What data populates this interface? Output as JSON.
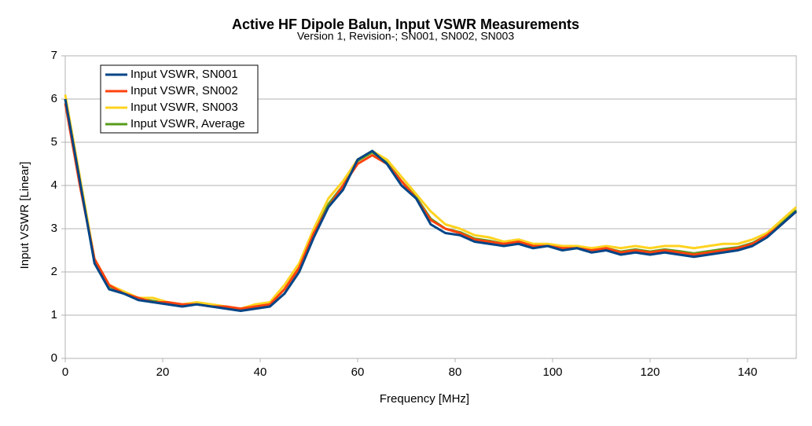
{
  "chart_data": {
    "type": "line",
    "title": "Active HF Dipole Balun, Input VSWR Measurements",
    "subtitle": "Version 1, Revision-; SN001, SN002, SN003",
    "x_label": "Frequency [MHz]",
    "y_label": "Input VSWR [Linear]",
    "x": [
      0,
      3,
      6,
      9,
      12,
      15,
      18,
      21,
      24,
      27,
      30,
      33,
      36,
      39,
      42,
      45,
      48,
      51,
      54,
      57,
      60,
      63,
      66,
      69,
      72,
      75,
      78,
      81,
      84,
      87,
      90,
      93,
      96,
      99,
      102,
      105,
      108,
      111,
      114,
      117,
      120,
      123,
      126,
      129,
      132,
      135,
      138,
      141,
      144,
      147,
      150
    ],
    "series": [
      {
        "name": "Input VSWR, SN001",
        "color": "#004586",
        "values": [
          6.0,
          4.1,
          2.2,
          1.6,
          1.5,
          1.35,
          1.3,
          1.25,
          1.2,
          1.25,
          1.2,
          1.15,
          1.1,
          1.15,
          1.2,
          1.5,
          2.0,
          2.8,
          3.5,
          3.9,
          4.6,
          4.8,
          4.5,
          4.0,
          3.7,
          3.1,
          2.9,
          2.85,
          2.7,
          2.65,
          2.6,
          2.65,
          2.55,
          2.6,
          2.5,
          2.55,
          2.45,
          2.5,
          2.4,
          2.45,
          2.4,
          2.45,
          2.4,
          2.35,
          2.4,
          2.45,
          2.5,
          2.6,
          2.8,
          3.1,
          3.4
        ]
      },
      {
        "name": "Input VSWR, SN002",
        "color": "#ff420e",
        "values": [
          5.9,
          4.0,
          2.3,
          1.7,
          1.5,
          1.4,
          1.3,
          1.3,
          1.25,
          1.25,
          1.2,
          1.2,
          1.15,
          1.2,
          1.25,
          1.6,
          2.1,
          2.9,
          3.5,
          4.0,
          4.5,
          4.7,
          4.5,
          4.1,
          3.7,
          3.2,
          3.0,
          2.9,
          2.75,
          2.7,
          2.65,
          2.7,
          2.6,
          2.6,
          2.55,
          2.55,
          2.5,
          2.55,
          2.45,
          2.5,
          2.45,
          2.5,
          2.45,
          2.4,
          2.45,
          2.5,
          2.55,
          2.65,
          2.85,
          3.1,
          3.4
        ]
      },
      {
        "name": "Input VSWR, SN003",
        "color": "#ffd320",
        "values": [
          6.1,
          4.2,
          2.3,
          1.7,
          1.55,
          1.4,
          1.4,
          1.3,
          1.25,
          1.3,
          1.25,
          1.2,
          1.15,
          1.25,
          1.3,
          1.7,
          2.2,
          3.0,
          3.7,
          4.1,
          4.6,
          4.8,
          4.6,
          4.2,
          3.8,
          3.4,
          3.1,
          3.0,
          2.85,
          2.8,
          2.7,
          2.75,
          2.65,
          2.65,
          2.6,
          2.6,
          2.55,
          2.6,
          2.55,
          2.6,
          2.55,
          2.6,
          2.6,
          2.55,
          2.6,
          2.65,
          2.65,
          2.75,
          2.9,
          3.2,
          3.5
        ]
      },
      {
        "name": "Input VSWR, Average",
        "color": "#579d1c",
        "values": [
          6.0,
          4.1,
          2.27,
          1.67,
          1.52,
          1.38,
          1.33,
          1.28,
          1.23,
          1.27,
          1.22,
          1.18,
          1.13,
          1.2,
          1.25,
          1.6,
          2.1,
          2.9,
          3.57,
          4.0,
          4.57,
          4.77,
          4.53,
          4.1,
          3.73,
          3.23,
          3.0,
          2.92,
          2.77,
          2.72,
          2.65,
          2.7,
          2.6,
          2.62,
          2.55,
          2.57,
          2.5,
          2.55,
          2.47,
          2.52,
          2.47,
          2.52,
          2.48,
          2.43,
          2.48,
          2.53,
          2.57,
          2.67,
          2.85,
          3.13,
          3.43
        ]
      }
    ],
    "xlim": [
      0,
      150
    ],
    "xticks": [
      0,
      20,
      40,
      60,
      80,
      100,
      120,
      140
    ],
    "ylim": [
      0,
      7
    ],
    "yticks": [
      0,
      1,
      2,
      3,
      4,
      5,
      6,
      7
    ],
    "grid": true,
    "legend": "top-left"
  }
}
